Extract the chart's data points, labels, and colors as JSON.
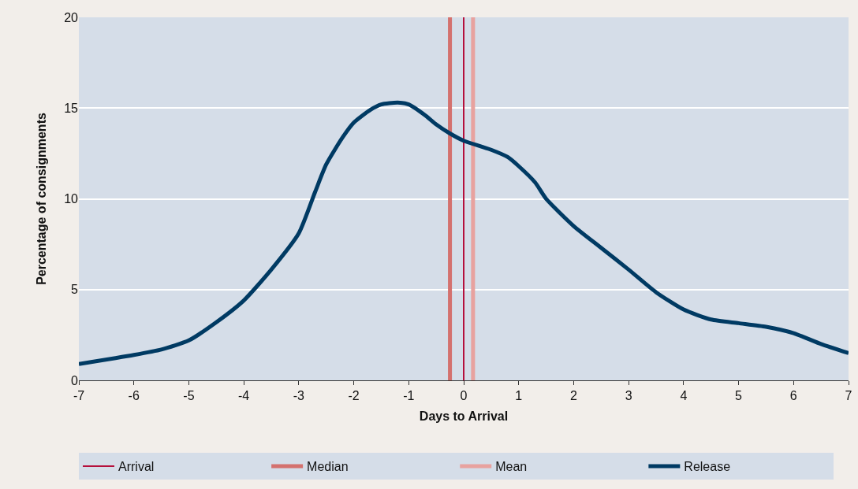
{
  "chart_data": {
    "type": "line",
    "xlabel": "Days to Arrival",
    "ylabel": "Percentage of consignments",
    "x": [
      -7,
      -6,
      -5.5,
      -5,
      -4.5,
      -4,
      -3.5,
      -3,
      -2.7,
      -2.5,
      -2.2,
      -2,
      -1.7,
      -1.5,
      -1.2,
      -1,
      -0.7,
      -0.5,
      -0.25,
      0,
      0.3,
      0.5,
      0.8,
      1,
      1.3,
      1.5,
      2,
      2.5,
      3,
      3.5,
      4,
      4.5,
      5,
      5.5,
      6,
      6.5,
      7
    ],
    "series": [
      {
        "name": "Release",
        "color": "#003a63",
        "values": [
          0.9,
          1.4,
          1.7,
          2.2,
          3.2,
          4.4,
          6.1,
          8.1,
          10.4,
          11.9,
          13.4,
          14.2,
          14.9,
          15.2,
          15.3,
          15.2,
          14.6,
          14.1,
          13.6,
          13.2,
          12.9,
          12.7,
          12.3,
          11.8,
          10.9,
          10.0,
          8.5,
          7.3,
          6.1,
          4.85,
          3.9,
          3.35,
          3.15,
          2.95,
          2.6,
          2.0,
          1.5
        ]
      }
    ],
    "ref_lines": [
      {
        "axis": "x",
        "value": 0,
        "label": "Arrival",
        "color": "#b5103c"
      },
      {
        "axis": "x",
        "value": -0.25,
        "label": "Median",
        "color": "#d4716e"
      },
      {
        "axis": "x",
        "value": 0.17,
        "label": "Mean",
        "color": "#e8a29f"
      }
    ],
    "xlim": [
      -7,
      7
    ],
    "xticks": [
      -7,
      -6,
      -5,
      -4,
      -3,
      -2,
      -1,
      0,
      1,
      2,
      3,
      4,
      5,
      6,
      7
    ],
    "ylim": [
      0,
      20
    ],
    "yticks": [
      0,
      5,
      10,
      15,
      20
    ],
    "grid": "y",
    "legend": "bottom",
    "marker": "none",
    "line_style": "solid"
  }
}
